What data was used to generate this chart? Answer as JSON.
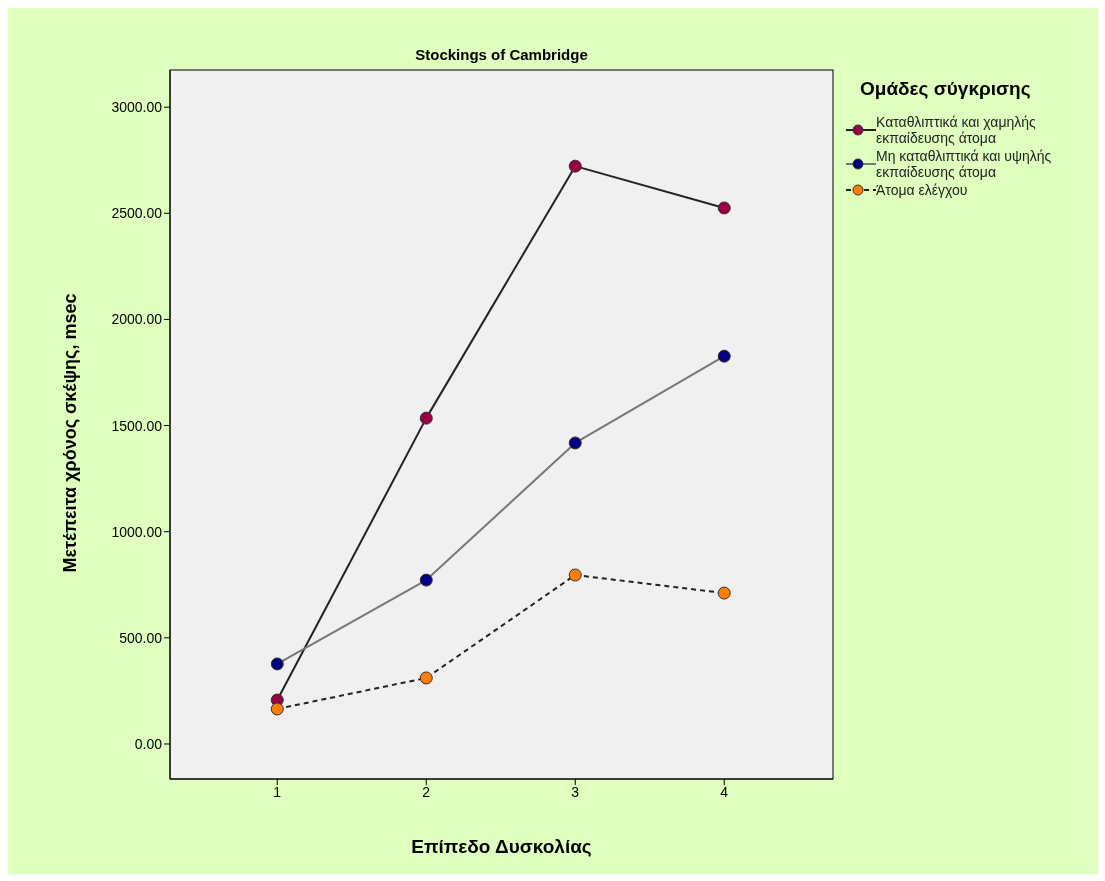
{
  "chart_data": {
    "type": "line",
    "title": "Stockings of Cambridge",
    "xlabel": "Επίπεδο Δυσκολίας",
    "ylabel": "Μετέπειτα χρόνος σκέψης, msec",
    "legend_title": "Ομάδες σύγκρισης",
    "x": [
      1,
      2,
      3,
      4
    ],
    "xlim": [
      0.28,
      4.73
    ],
    "xticks": [
      1,
      2,
      3,
      4
    ],
    "ylim": [
      -165,
      3175
    ],
    "yticks": [
      {
        "value": 0,
        "label": "0.00"
      },
      {
        "value": 500,
        "label": "500.00"
      },
      {
        "value": 1000,
        "label": "1000.00"
      },
      {
        "value": 1500,
        "label": "1500.00"
      },
      {
        "value": 2000,
        "label": "2000.00"
      },
      {
        "value": 2500,
        "label": "2500.00"
      },
      {
        "value": 3000,
        "label": "3000.00"
      }
    ],
    "series": [
      {
        "name": "Καταθλιπτικά και χαμηλής εκπαίδευσης άτομα",
        "color": "#990044",
        "line_style": "solid",
        "values": [
          207,
          1535,
          2722,
          2525
        ]
      },
      {
        "name": "Μη καταθλιπτικά και υψηλής εκπαίδευσης άτομα",
        "color": "#000080",
        "line_style": "solid",
        "values": [
          377,
          772,
          1418,
          1827
        ]
      },
      {
        "name": "Άτομα ελέγχου",
        "color": "#ff8000",
        "line_style": "dashed",
        "values": [
          165,
          311,
          796,
          711
        ]
      }
    ],
    "marker": "circle",
    "grid": false,
    "legend": "right"
  }
}
